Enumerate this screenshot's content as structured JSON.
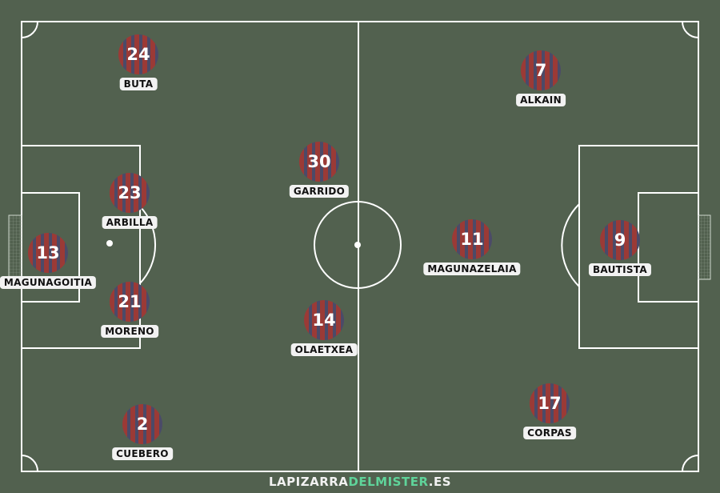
{
  "colors": {
    "pitch": "#52614f",
    "lines": "#ffffff",
    "shirt_stripe_1": "#9b3a36",
    "shirt_stripe_2": "#4b4a68"
  },
  "players": [
    {
      "number": "24",
      "name": "BUTA"
    },
    {
      "number": "7",
      "name": "ALKAIN"
    },
    {
      "number": "30",
      "name": "GARRIDO"
    },
    {
      "number": "23",
      "name": "ARBILLA"
    },
    {
      "number": "13",
      "name": "MAGUNAGOITIA"
    },
    {
      "number": "21",
      "name": "MORENO"
    },
    {
      "number": "14",
      "name": "OLAETXEA"
    },
    {
      "number": "11",
      "name": "MAGUNAZELAIA"
    },
    {
      "number": "9",
      "name": "BAUTISTA"
    },
    {
      "number": "17",
      "name": "CORPAS"
    },
    {
      "number": "2",
      "name": "CUEBERO"
    }
  ],
  "watermark": {
    "part1": "LAPIZARRA",
    "part2": "DELMISTER",
    "part3": ".ES"
  }
}
